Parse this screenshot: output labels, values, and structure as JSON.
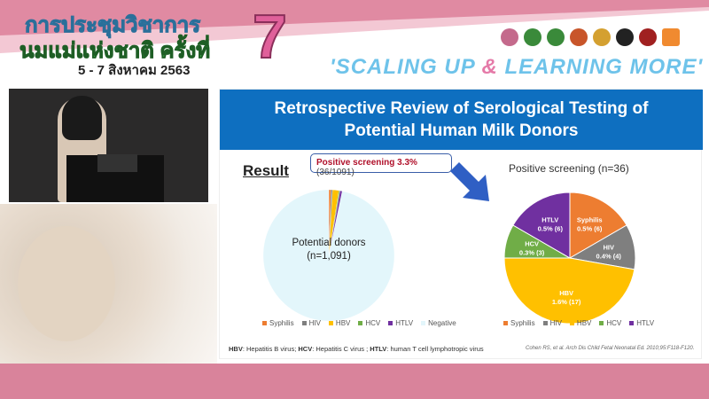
{
  "banner": {
    "title_line1": "การประชุมวิชาการ",
    "title_line2": "นมแม่แห่งชาติ ครั้งที่",
    "dates": "5 - 7 สิงหาคม 2563",
    "edition": "7",
    "slogan_a": "'SCALING UP ",
    "slogan_amp": "&",
    "slogan_b": " LEARNING MORE'"
  },
  "slide": {
    "title_line1": "Retrospective Review of Serological Testing of",
    "title_line2": "Potential Human Milk Donors",
    "result_heading": "Result",
    "callout_bold": "Positive screening 3.3%",
    "callout_rest": " (36/1091)",
    "footnote": {
      "hbv": "HBV",
      "hbv_t": ": Hepatitis B virus; ",
      "hcv": "HCV",
      "hcv_t": ": Hepatitis C virus ; ",
      "htlv": "HTLV",
      "htlv_t": ": human T cell lymphotropic virus"
    },
    "citation": "Cohen RS, et al. Arch Dis Child Fetal Neonatal Ed. 2010;95:F118-F120."
  },
  "chart_data": [
    {
      "type": "pie",
      "center_label_line1": "Potential donors",
      "center_label_line2": "(n=1,091)",
      "categories": [
        "Syphilis",
        "HIV",
        "HBV",
        "HCV",
        "HTLV",
        "Negative"
      ],
      "values": [
        6,
        4,
        17,
        3,
        6,
        1055
      ],
      "colors": [
        "#ed7d31",
        "#7f7f7f",
        "#ffc000",
        "#70ad47",
        "#7030a0",
        "#e3f6fb"
      ],
      "legend": "bottom"
    },
    {
      "type": "pie",
      "title": "Positive screening (n=36)",
      "categories": [
        "Syphilis",
        "HIV",
        "HBV",
        "HCV",
        "HTLV"
      ],
      "values": [
        6,
        4,
        17,
        3,
        6
      ],
      "data_labels": [
        "0.5% (6)",
        "0.4% (4)",
        "1.6% (17)",
        "0.3% (3)",
        "0.5% (6)"
      ],
      "colors": [
        "#ed7d31",
        "#7f7f7f",
        "#ffc000",
        "#70ad47",
        "#7030a0"
      ],
      "legend": "bottom"
    }
  ]
}
